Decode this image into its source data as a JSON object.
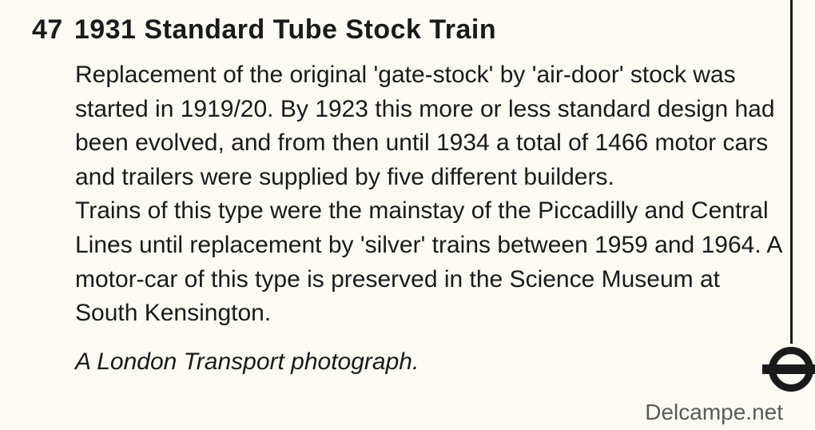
{
  "item_number": "47",
  "title": "1931 Standard Tube Stock Train",
  "paragraph1": "Replacement of the original 'gate-stock' by 'air-door' stock was started in 1919/20. By 1923 this more or less standard design had been evolved, and from then until 1934 a total of 1466 motor cars and trailers were supplied by five different builders.",
  "paragraph2": "Trains of this type were the mainstay of the Piccadilly and Central Lines until replacement by 'silver' trains between 1959 and 1964. A motor-car of this type is preserved in the Science Museum at South Kensington.",
  "credit": "A London Transport photograph.",
  "footer_url": "Delcampe.net",
  "colors": {
    "background": "#fbfaf3",
    "text": "#1a1a1a",
    "footer": "#5a5a5a"
  }
}
